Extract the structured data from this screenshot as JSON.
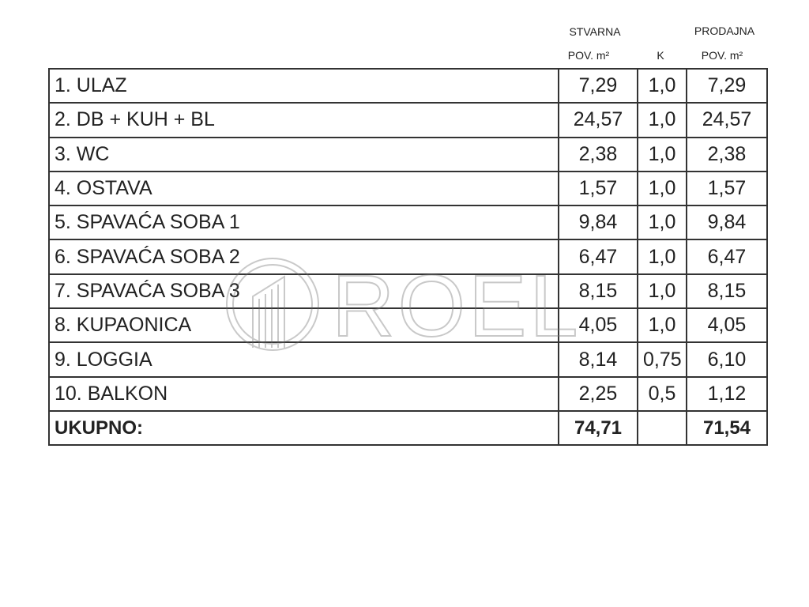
{
  "header": {
    "actual": {
      "line1": "STVARNA",
      "line2": "POV. m²"
    },
    "k": "K",
    "sale": {
      "line1": "PRODAJNA",
      "line2": "POV. m²"
    }
  },
  "table": {
    "rows": [
      [
        "1. ULAZ",
        "7,29",
        "1,0",
        "7,29"
      ],
      [
        "2. DB + KUH + BL",
        "24,57",
        "1,0",
        "24,57"
      ],
      [
        "3. WC",
        "2,38",
        "1,0",
        "2,38"
      ],
      [
        "4. OSTAVA",
        "1,57",
        "1,0",
        "1,57"
      ],
      [
        "5. SPAVAĆA SOBA 1",
        "9,84",
        "1,0",
        "9,84"
      ],
      [
        "6. SPAVAĆA SOBA 2",
        "6,47",
        "1,0",
        "6,47"
      ],
      [
        "7. SPAVAĆA SOBA 3",
        "8,15",
        "1,0",
        "8,15"
      ],
      [
        "8. KUPAONICA",
        "4,05",
        "1,0",
        "4,05"
      ],
      [
        "9. LOGGIA",
        "8,14",
        "0,75",
        "6,10"
      ],
      [
        "10. BALKON",
        "2,25",
        "0,5",
        "1,12"
      ]
    ],
    "total": {
      "label": "UKUPNO:",
      "actual": "74,71",
      "sale": "71,54"
    }
  },
  "watermark": {
    "text": "ROEL"
  }
}
